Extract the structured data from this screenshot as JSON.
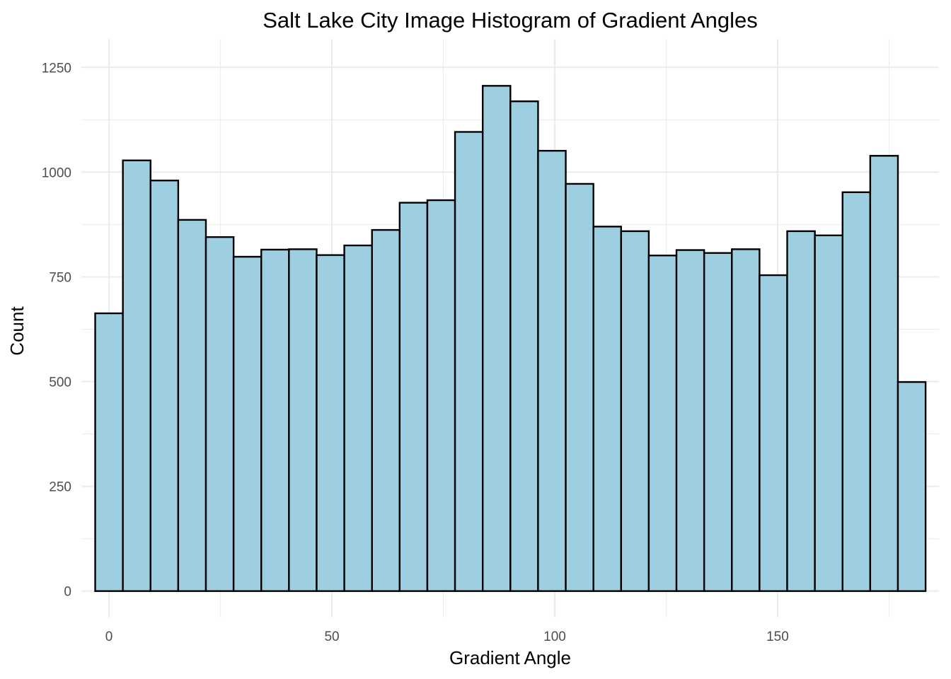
{
  "chart_data": {
    "type": "bar",
    "title": "Salt Lake City Image Histogram of Gradient Angles",
    "xlabel": "Gradient Angle",
    "ylabel": "Count",
    "xlim": [
      -6.2,
      186.2
    ],
    "ylim": [
      -63,
      1318
    ],
    "x_ticks": [
      0,
      50,
      100,
      150
    ],
    "y_ticks": [
      0,
      250,
      500,
      750,
      1000,
      1250
    ],
    "grid": true,
    "bar_fill": "#9ecfe0",
    "bar_outline": "#000000",
    "bin_width": 6.21,
    "bin_start": -3.1,
    "values": [
      663,
      1028,
      980,
      886,
      845,
      798,
      815,
      816,
      802,
      825,
      862,
      927,
      933,
      1096,
      1206,
      1169,
      1051,
      972,
      870,
      859,
      801,
      814,
      807,
      816,
      754,
      859,
      849,
      952,
      1039,
      499
    ]
  }
}
